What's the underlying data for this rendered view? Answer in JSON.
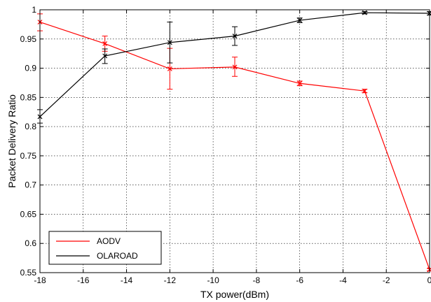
{
  "chart_data": {
    "type": "line",
    "xlabel": "TX power(dBm)",
    "ylabel": "Packet Delivery Ratio",
    "xlim": [
      -18,
      0
    ],
    "ylim": [
      0.55,
      1
    ],
    "xticks": [
      -18,
      -16,
      -14,
      -12,
      -10,
      -8,
      -6,
      -4,
      -2,
      0
    ],
    "xtick_labels": [
      "-18",
      "-16",
      "-14",
      "-12",
      "-10",
      "-8",
      "-6",
      "-4",
      "-2",
      "0"
    ],
    "yticks": [
      0.55,
      0.6,
      0.65,
      0.7,
      0.75,
      0.8,
      0.85,
      0.9,
      0.95,
      1
    ],
    "ytick_labels": [
      "0.55",
      "0.6",
      "0.65",
      "0.7",
      "0.75",
      "0.8",
      "0.85",
      "0.9",
      "0.95",
      "1"
    ],
    "grid": true,
    "grid_style": "dotted",
    "legend_position": "bottom-left",
    "series": [
      {
        "name": "AODV",
        "color": "#ff0000",
        "marker": "x",
        "x": [
          -18,
          -15,
          -12,
          -9,
          -6,
          -3,
          0
        ],
        "y": [
          0.979,
          0.942,
          0.899,
          0.902,
          0.874,
          0.861,
          0.555
        ],
        "err_low": [
          0.964,
          0.929,
          0.864,
          0.886,
          0.87,
          0.858,
          0.553
        ],
        "err_high": [
          0.993,
          0.955,
          0.934,
          0.919,
          0.878,
          0.864,
          0.557
        ]
      },
      {
        "name": "OLAROAD",
        "color": "#000000",
        "marker": "x",
        "x": [
          -18,
          -15,
          -12,
          -9,
          -6,
          -3,
          0
        ],
        "y": [
          0.817,
          0.921,
          0.944,
          0.955,
          0.982,
          0.995,
          0.994
        ],
        "err_low": [
          0.806,
          0.908,
          0.909,
          0.939,
          0.978,
          0.993,
          0.991
        ],
        "err_high": [
          0.829,
          0.933,
          0.979,
          0.971,
          0.986,
          0.997,
          0.997
        ]
      }
    ]
  }
}
